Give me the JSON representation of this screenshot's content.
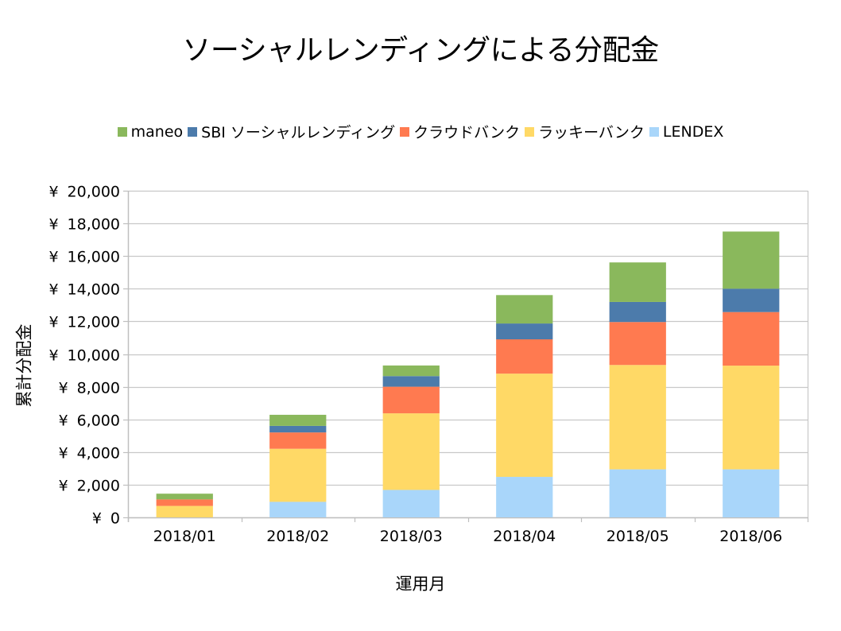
{
  "chart_data": {
    "type": "bar",
    "stacked": true,
    "title": "ソーシャルレンディングによる分配金",
    "xlabel": "運用月",
    "ylabel": "累計分配金",
    "categories": [
      "2018/01",
      "2018/02",
      "2018/03",
      "2018/04",
      "2018/05",
      "2018/06"
    ],
    "ylim": [
      0,
      20000
    ],
    "y_ticks": [
      0,
      2000,
      4000,
      6000,
      8000,
      10000,
      12000,
      14000,
      16000,
      18000,
      20000
    ],
    "y_tick_prefix": "¥",
    "grid": true,
    "legend_position": "top",
    "legend_order": [
      "maneo",
      "SBI ソーシャルレンディング",
      "クラウドバンク",
      "ラッキーバンク",
      "LENDEX"
    ],
    "series": [
      {
        "name": "LENDEX",
        "color": "#A9D6FA",
        "values": [
          0,
          950,
          1680,
          2480,
          2940,
          2940
        ]
      },
      {
        "name": "ラッキーバンク",
        "color": "#FFD966",
        "values": [
          700,
          3250,
          4690,
          6320,
          6390,
          6350
        ]
      },
      {
        "name": "クラウドバンク",
        "color": "#FF7A50",
        "values": [
          400,
          1000,
          1630,
          2100,
          2630,
          3280
        ]
      },
      {
        "name": "SBI ソーシャルレンディング",
        "color": "#4C7BAB",
        "values": [
          0,
          400,
          650,
          970,
          1230,
          1430
        ]
      },
      {
        "name": "maneo",
        "color": "#8AB85C",
        "values": [
          350,
          680,
          650,
          1740,
          2420,
          3500
        ]
      }
    ]
  }
}
